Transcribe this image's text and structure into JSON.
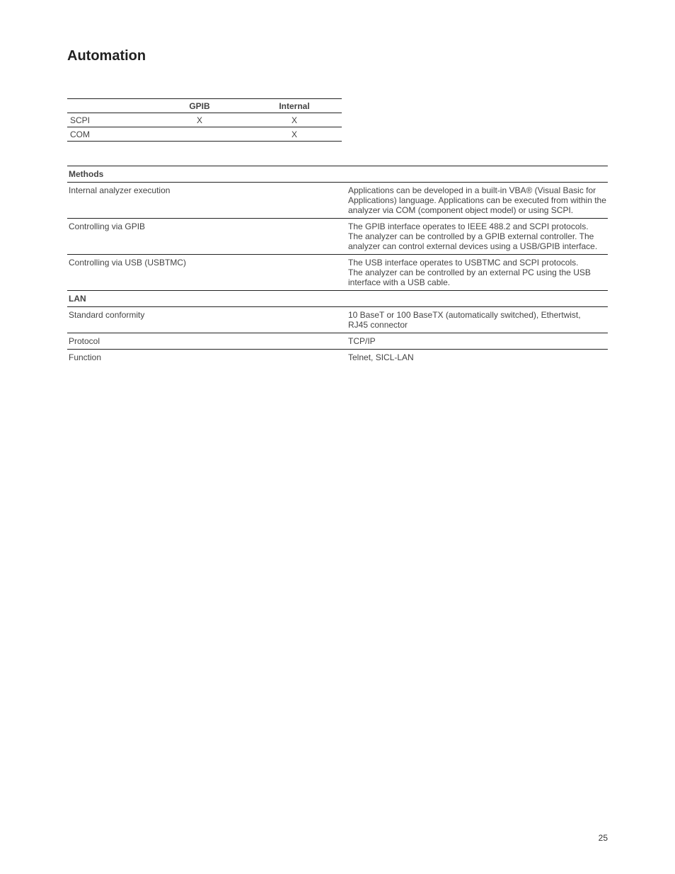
{
  "title": "Automation",
  "page_number": "25",
  "table1": {
    "columns": [
      "",
      "GPIB",
      "Internal"
    ],
    "rows": [
      {
        "label": "SCPI",
        "gpib": "X",
        "internal": "X"
      },
      {
        "label": "COM",
        "gpib": "",
        "internal": "X"
      }
    ]
  },
  "table2": {
    "header": "Methods",
    "rows": [
      {
        "label": "Internal analyzer execution",
        "value": "Applications can be developed in a built-in VBA® (Visual Basic for Applications) language. Applications can be executed from within the analyzer via COM (component object model) or using SCPI."
      },
      {
        "label": "Controlling via GPIB",
        "value": "The GPIB interface operates to IEEE 488.2 and SCPI protocols.\nThe analyzer can be controlled by a GPIB external controller. The analyzer can control external devices using a USB/GPIB interface."
      },
      {
        "label": "Controlling via USB (USBTMC)",
        "value": "The USB interface operates to USBTMC and SCPI protocols.\nThe analyzer can be controlled by an external PC using the USB interface with a USB cable."
      }
    ],
    "subheader": "LAN",
    "lan_rows": [
      {
        "label": "Standard conformity",
        "value": "10 BaseT or 100 BaseTX (automatically switched), Ethertwist,\nRJ45 connector"
      },
      {
        "label": "Protocol",
        "value": "TCP/IP"
      },
      {
        "label": "Function",
        "value": "Telnet, SICL-LAN"
      }
    ]
  }
}
